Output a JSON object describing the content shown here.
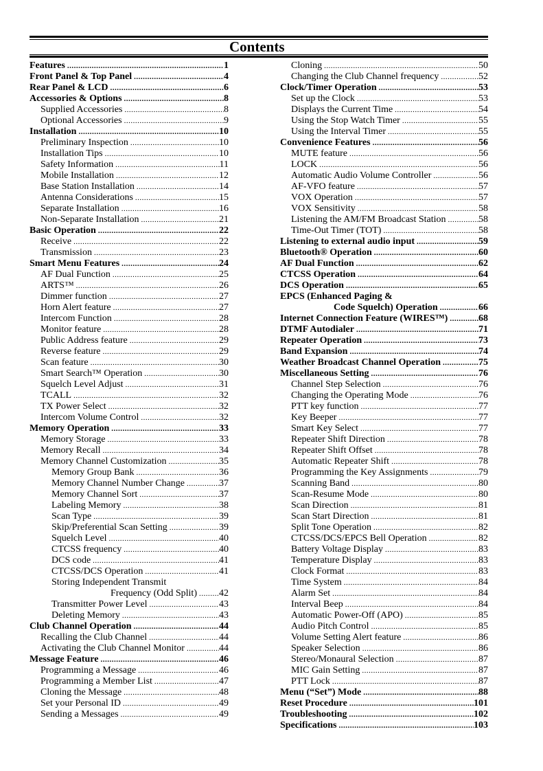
{
  "title": "Contents",
  "left_column": [
    {
      "label": "Features",
      "page": "1",
      "level": 0
    },
    {
      "label": "Front Panel & Top Panel",
      "page": "4",
      "level": 0
    },
    {
      "label": "Rear Panel & LCD",
      "page": "6",
      "level": 0
    },
    {
      "label": "Accessories & Options",
      "page": "8",
      "level": 0
    },
    {
      "label": "Supplied Accessories",
      "page": "8",
      "level": 1
    },
    {
      "label": "Optional Accessories",
      "page": "9",
      "level": 1
    },
    {
      "label": "Installation",
      "page": "10",
      "level": 0
    },
    {
      "label": "Preliminary Inspection",
      "page": "10",
      "level": 1
    },
    {
      "label": "Installation Tips",
      "page": "10",
      "level": 1
    },
    {
      "label": "Safety Information",
      "page": "11",
      "level": 1
    },
    {
      "label": "Mobile Installation",
      "page": "12",
      "level": 1
    },
    {
      "label": "Base Station Installation",
      "page": "14",
      "level": 1
    },
    {
      "label": "Antenna Considerations",
      "page": "15",
      "level": 1
    },
    {
      "label": "Separate Installation",
      "page": "16",
      "level": 1
    },
    {
      "label": "Non-Separate Installation",
      "page": "21",
      "level": 1
    },
    {
      "label": "Basic Operation",
      "page": "22",
      "level": 0
    },
    {
      "label": "Receive",
      "page": "22",
      "level": 1
    },
    {
      "label": "Transmission",
      "page": "23",
      "level": 1
    },
    {
      "label": "Smart Menu Features",
      "page": "24",
      "level": 0
    },
    {
      "label": "AF Dual Function",
      "page": "25",
      "level": 1
    },
    {
      "label": "ARTS™",
      "page": "26",
      "level": 1
    },
    {
      "label": "Dimmer function",
      "page": "27",
      "level": 1
    },
    {
      "label": "Horn Alert feature",
      "page": "27",
      "level": 1
    },
    {
      "label": "Intercom Function",
      "page": "28",
      "level": 1
    },
    {
      "label": "Monitor feature",
      "page": "28",
      "level": 1
    },
    {
      "label": "Public Address feature",
      "page": "29",
      "level": 1
    },
    {
      "label": "Reverse feature",
      "page": "29",
      "level": 1
    },
    {
      "label": "Scan feature",
      "page": "30",
      "level": 1
    },
    {
      "label": "Smart Search™ Operation",
      "page": "30",
      "level": 1
    },
    {
      "label": "Squelch Level Adjust",
      "page": "31",
      "level": 1
    },
    {
      "label": "TCALL",
      "page": "32",
      "level": 1
    },
    {
      "label": "TX Power Select",
      "page": "32",
      "level": 1
    },
    {
      "label": "Intercom Volume Control",
      "page": "32",
      "level": 1
    },
    {
      "label": "Memory Operation",
      "page": "33",
      "level": 0
    },
    {
      "label": "Memory Storage",
      "page": "33",
      "level": 1
    },
    {
      "label": "Memory Recall",
      "page": "34",
      "level": 1
    },
    {
      "label": "Memory Channel Customization",
      "page": "35",
      "level": 1
    },
    {
      "label": "Memory Group Bank",
      "page": "36",
      "level": 2
    },
    {
      "label": "Memory Channel Number Change",
      "page": "37",
      "level": 2
    },
    {
      "label": "Memory Channel Sort",
      "page": "37",
      "level": 2
    },
    {
      "label": "Labeling Memory",
      "page": "38",
      "level": 2
    },
    {
      "label": "Scan Type",
      "page": "39",
      "level": 2
    },
    {
      "label": "Skip/Preferential Scan Setting",
      "page": "39",
      "level": 2
    },
    {
      "label": "Squelch Level",
      "page": "40",
      "level": 2
    },
    {
      "label": "CTCSS frequency",
      "page": "40",
      "level": 2
    },
    {
      "label": "DCS code",
      "page": "41",
      "level": 2
    },
    {
      "label": "CTCSS/DCS Operation",
      "page": "41",
      "level": 2
    },
    {
      "label": "Storing Independent Transmit",
      "cont": "Frequency (Odd Split)",
      "page": "42",
      "level": 2
    },
    {
      "label": "Transmitter Power Level",
      "page": "43",
      "level": 2
    },
    {
      "label": "Deleting Memory",
      "page": "43",
      "level": 2
    },
    {
      "label": "Club Channel Operation",
      "page": "44",
      "level": 0
    },
    {
      "label": "Recalling the Club Channel",
      "page": "44",
      "level": 1
    },
    {
      "label": "Activating the Club Channel Monitor",
      "page": "44",
      "level": 1
    },
    {
      "label": "Message Feature",
      "page": "46",
      "level": 0
    },
    {
      "label": "Programming a Message",
      "page": "46",
      "level": 1
    },
    {
      "label": "Programming a Member List",
      "page": "47",
      "level": 1
    },
    {
      "label": "Cloning the Message",
      "page": "48",
      "level": 1
    },
    {
      "label": "Set your Personal ID",
      "page": "49",
      "level": 1
    },
    {
      "label": "Sending a Messages",
      "page": "49",
      "level": 1
    }
  ],
  "right_column": [
    {
      "label": "Cloning",
      "page": "50",
      "level": 1
    },
    {
      "label": "Changing the Club Channel frequency",
      "page": "52",
      "level": 1
    },
    {
      "label": "Clock/Timer Operation",
      "page": "53",
      "level": 0
    },
    {
      "label": "Set up the Clock",
      "page": "53",
      "level": 1
    },
    {
      "label": "Displays the Current Time",
      "page": "54",
      "level": 1
    },
    {
      "label": "Using the Stop Watch Timer",
      "page": "55",
      "level": 1
    },
    {
      "label": "Using the Interval Timer",
      "page": "55",
      "level": 1
    },
    {
      "label": "Convenience Features",
      "page": "56",
      "level": 0
    },
    {
      "label": "MUTE feature",
      "page": "56",
      "level": 1
    },
    {
      "label": "LOCK",
      "page": "56",
      "level": 1
    },
    {
      "label": "Automatic Audio Volume Controller",
      "page": "56",
      "level": 1
    },
    {
      "label": "AF-VFO feature",
      "page": "57",
      "level": 1
    },
    {
      "label": "VOX Operation",
      "page": "57",
      "level": 1
    },
    {
      "label": "VOX Sensitivity",
      "page": "58",
      "level": 1
    },
    {
      "label": "Listening the AM/FM Broadcast Station",
      "page": "58",
      "level": 1
    },
    {
      "label": "Time-Out Timer (TOT)",
      "page": "58",
      "level": 1
    },
    {
      "label": "Listening to external audio input",
      "page": "59",
      "level": 0
    },
    {
      "label": "Bluetooth® Operation",
      "page": "60",
      "level": 0
    },
    {
      "label": "AF Dual Function",
      "page": "62",
      "level": 0
    },
    {
      "label": "CTCSS Operation",
      "page": "64",
      "level": 0
    },
    {
      "label": "DCS Operation",
      "page": "65",
      "level": 0
    },
    {
      "label": "EPCS (Enhanced Paging &",
      "cont": "Code Squelch) Operation",
      "page": "66",
      "level": 0
    },
    {
      "label": "Internet Connection Feature (WIRES™)",
      "page": "68",
      "level": 0
    },
    {
      "label": "DTMF Autodialer",
      "page": "71",
      "level": 0
    },
    {
      "label": "Repeater Operation",
      "page": "73",
      "level": 0
    },
    {
      "label": "Band Expansion",
      "page": "74",
      "level": 0
    },
    {
      "label": "Weather Broadcast Channel Operation",
      "page": "75",
      "level": 0
    },
    {
      "label": "Miscellaneous Setting",
      "page": "76",
      "level": 0
    },
    {
      "label": "Channel Step Selection",
      "page": "76",
      "level": 1
    },
    {
      "label": "Changing the Operating Mode",
      "page": "76",
      "level": 1
    },
    {
      "label": "PTT key function",
      "page": "77",
      "level": 1
    },
    {
      "label": "Key Beeper",
      "page": "77",
      "level": 1
    },
    {
      "label": "Smart Key Select",
      "page": "77",
      "level": 1
    },
    {
      "label": "Repeater Shift Direction",
      "page": "78",
      "level": 1
    },
    {
      "label": "Repeater Shift Offset",
      "page": "78",
      "level": 1
    },
    {
      "label": "Automatic Repeater Shift",
      "page": "78",
      "level": 1
    },
    {
      "label": "Programming the Key Assignments",
      "page": "79",
      "level": 1
    },
    {
      "label": "Scanning Band",
      "page": "80",
      "level": 1
    },
    {
      "label": "Scan-Resume Mode",
      "page": "80",
      "level": 1
    },
    {
      "label": "Scan Direction",
      "page": "81",
      "level": 1
    },
    {
      "label": "Scan Start Direction",
      "page": "81",
      "level": 1
    },
    {
      "label": "Split Tone Operation",
      "page": "82",
      "level": 1
    },
    {
      "label": "CTCSS/DCS/EPCS Bell Operation",
      "page": "82",
      "level": 1
    },
    {
      "label": "Battery Voltage Display",
      "page": "83",
      "level": 1
    },
    {
      "label": "Temperature Display",
      "page": "83",
      "level": 1
    },
    {
      "label": "Clock Format",
      "page": "83",
      "level": 1
    },
    {
      "label": "Time System",
      "page": "84",
      "level": 1
    },
    {
      "label": "Alarm Set",
      "page": "84",
      "level": 1
    },
    {
      "label": "Interval Beep",
      "page": "84",
      "level": 1
    },
    {
      "label": "Automatic Power-Off (APO)",
      "page": "85",
      "level": 1
    },
    {
      "label": "Audio Pitch Control",
      "page": "85",
      "level": 1
    },
    {
      "label": "Volume Setting Alert feature",
      "page": "86",
      "level": 1
    },
    {
      "label": "Speaker Selection",
      "page": "86",
      "level": 1
    },
    {
      "label": "Stereo/Monaural Selection",
      "page": "87",
      "level": 1
    },
    {
      "label": "MIC Gain Setting",
      "page": "87",
      "level": 1
    },
    {
      "label": "PTT Lock",
      "page": "87",
      "level": 1
    },
    {
      "label": "Menu (“Set”) Mode",
      "page": "88",
      "level": 0
    },
    {
      "label": "Reset Procedure",
      "page": "101",
      "level": 0
    },
    {
      "label": "Troubleshooting",
      "page": "102",
      "level": 0
    },
    {
      "label": "Specifications",
      "page": "103",
      "level": 0
    }
  ]
}
